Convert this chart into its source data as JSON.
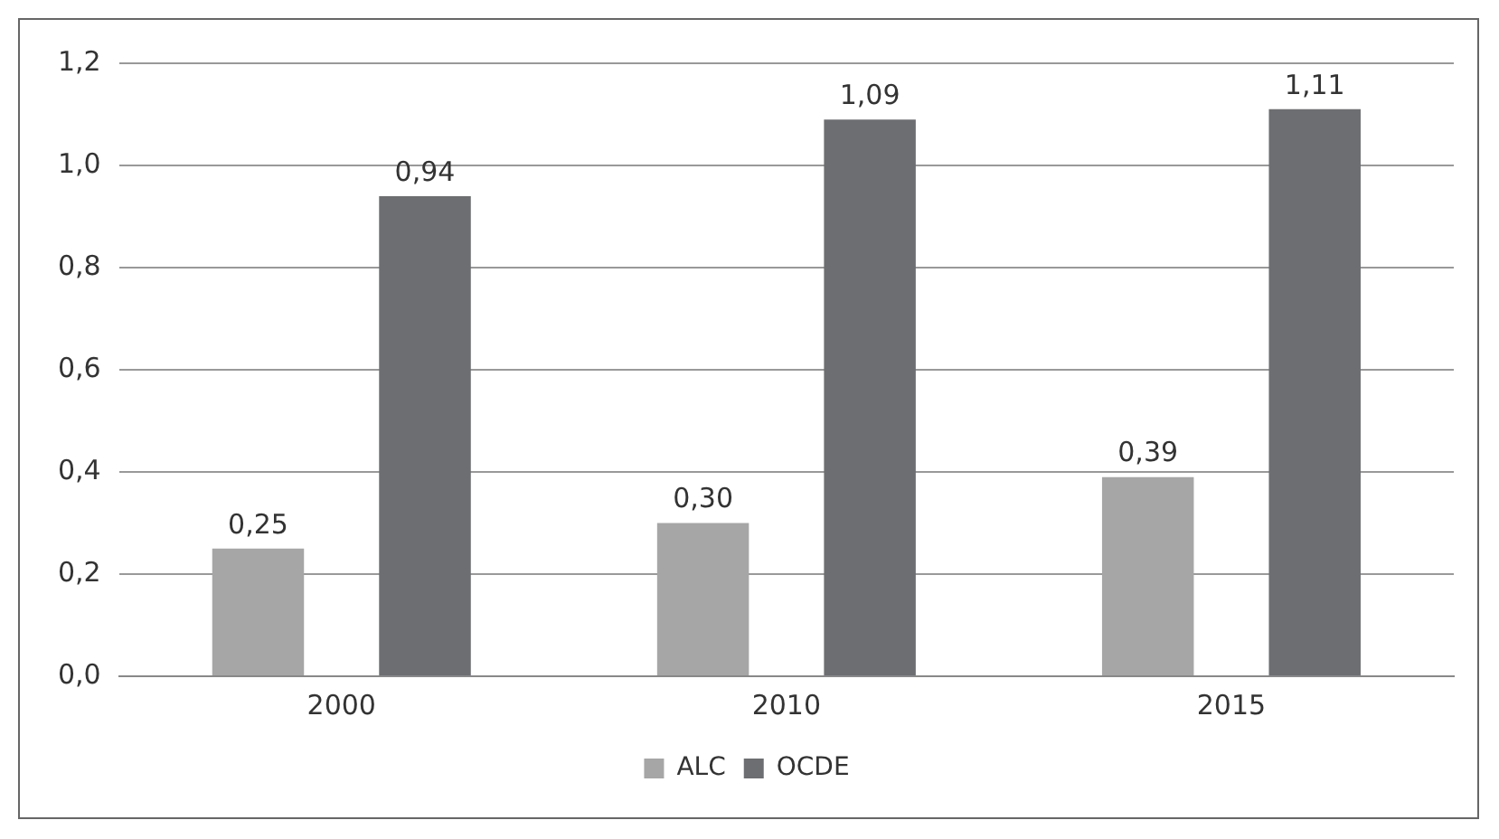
{
  "chart_data": {
    "type": "bar",
    "categories": [
      "2000",
      "2010",
      "2015"
    ],
    "series": [
      {
        "name": "ALC",
        "color": "#a6a6a6",
        "values": [
          0.25,
          0.3,
          0.39
        ],
        "value_labels": [
          "0,25",
          "0,30",
          "0,39"
        ]
      },
      {
        "name": "OCDE",
        "color": "#6d6e71",
        "values": [
          0.94,
          1.09,
          1.11
        ],
        "value_labels": [
          "0,94",
          "1,09",
          "1,11"
        ]
      }
    ],
    "ylim": [
      0,
      1.2
    ],
    "yticks": [
      {
        "value": 0,
        "label": "0,0"
      },
      {
        "value": 0.2,
        "label": "0,2"
      },
      {
        "value": 0.4,
        "label": "0,4"
      },
      {
        "value": 0.6,
        "label": "0,6"
      },
      {
        "value": 0.8,
        "label": "0,8"
      },
      {
        "value": 1.0,
        "label": "1,0"
      },
      {
        "value": 1.2,
        "label": "1,2"
      }
    ],
    "grid": "y",
    "legend": "bottom"
  }
}
